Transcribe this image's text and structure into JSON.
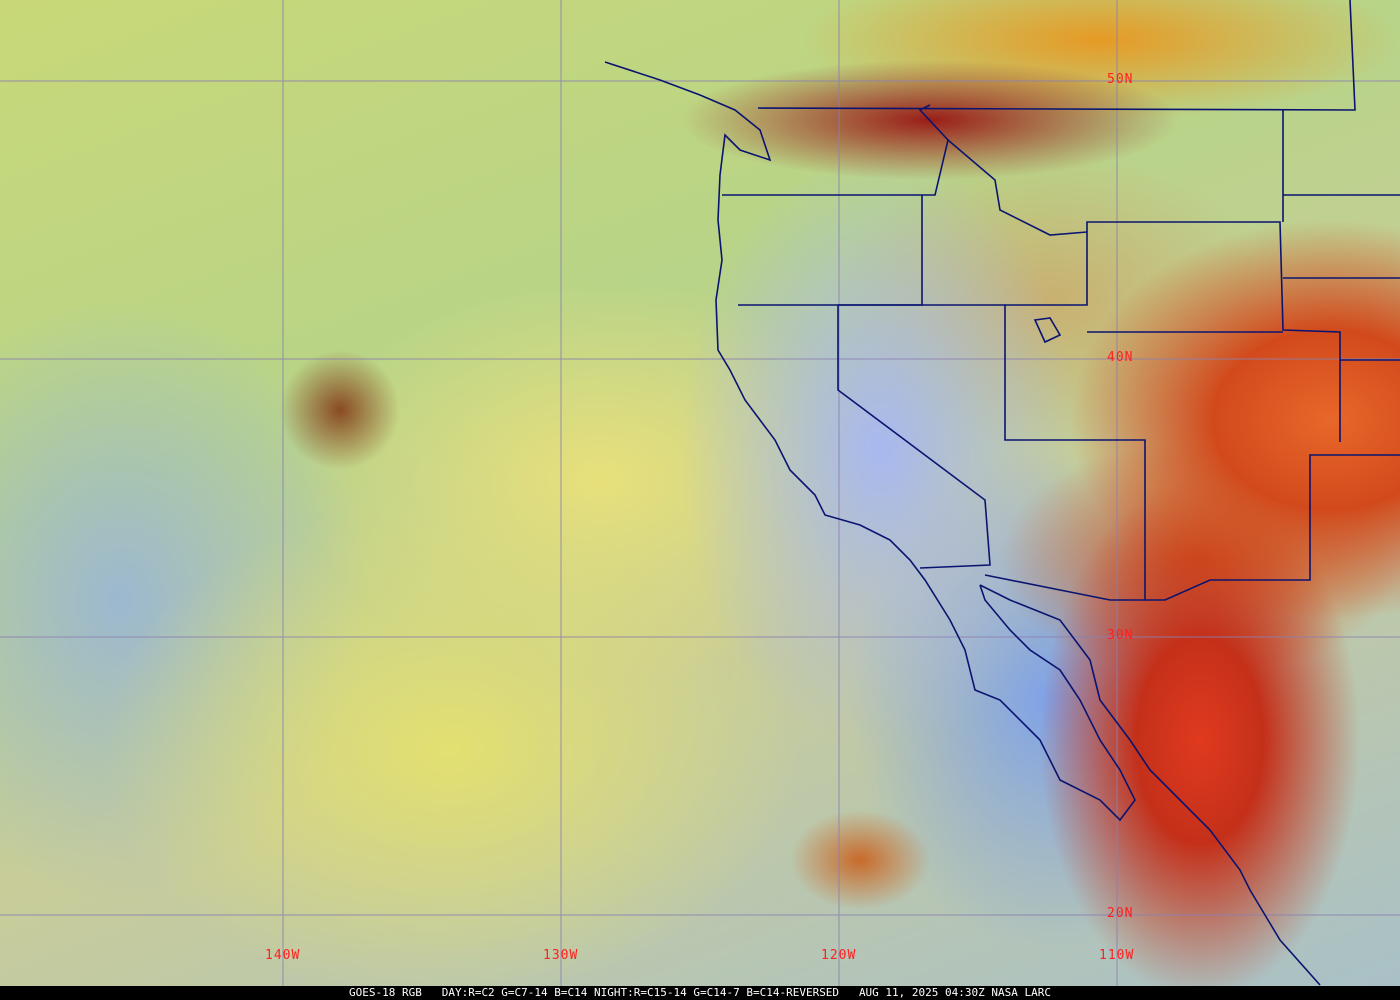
{
  "map": {
    "latitude_labels": [
      "50N",
      "40N",
      "30N",
      "20N"
    ],
    "longitude_labels": [
      "140W",
      "130W",
      "120W",
      "110W"
    ],
    "colors": {
      "grid": "#8a80b0",
      "borders": "#0a1470",
      "labels": "#ff2020"
    }
  },
  "caption": {
    "satellite": "GOES-18 RGB",
    "product": "DAY:R=C2 G=C7-14 B=C14 NIGHT:R=C15-14 G=C14-7 B=C14-REVERSED",
    "datetime": "AUG 11, 2025 04:30Z",
    "source": "NASA LARC"
  }
}
